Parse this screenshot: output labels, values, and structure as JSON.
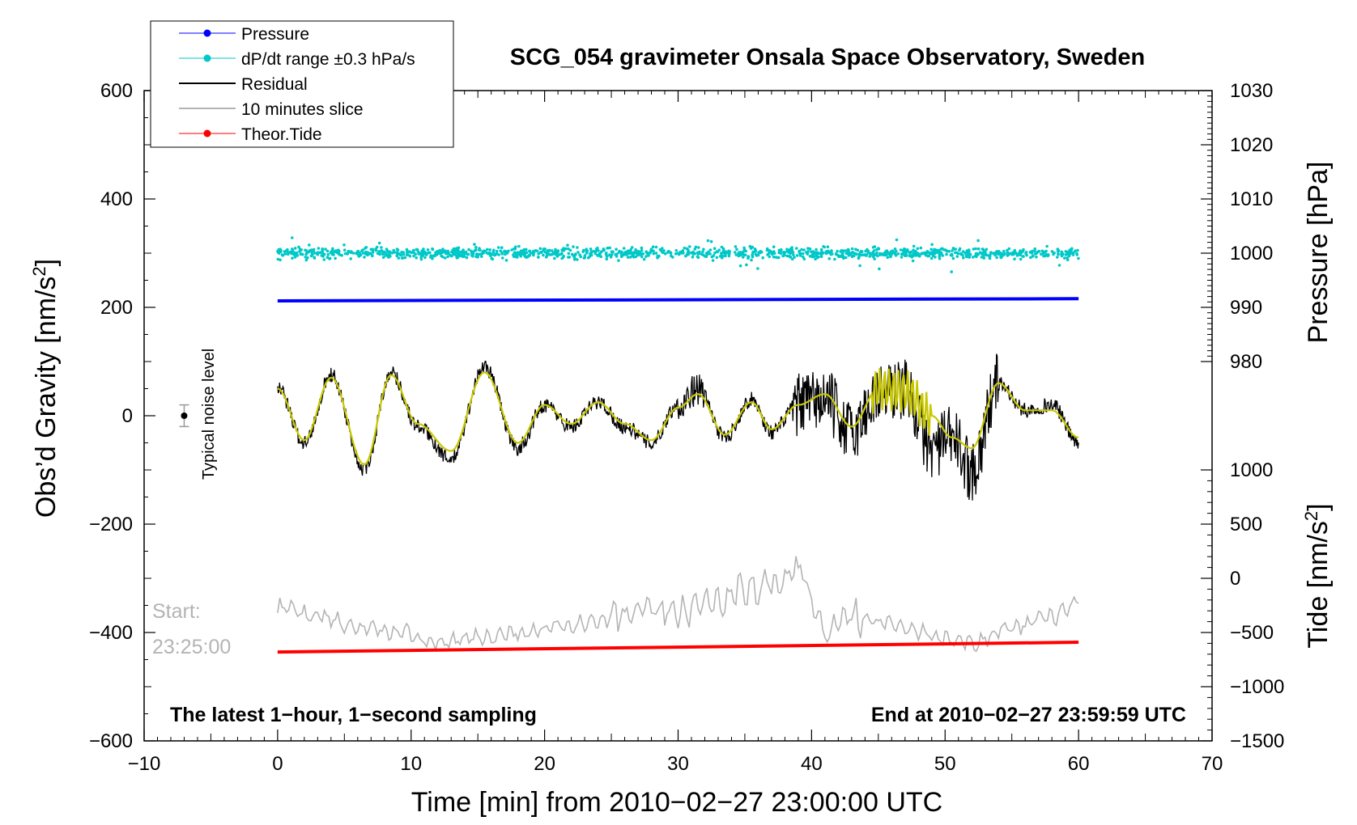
{
  "chart_data": {
    "type": "line",
    "title": "SCG_054 gravimeter Onsala Space Observatory, Sweden",
    "xlabel": "Time [min] from 2010−02−27 23:00:00 UTC",
    "ylabel_left": "Obs’d Gravity [nm/s",
    "ylabel_left_sup": "2",
    "ylabel_left_end": "]",
    "ylabel_right_pressure": "Pressure [hPa]",
    "ylabel_right_tide": "Tide [nm/s",
    "ylabel_right_tide_sup": "2",
    "ylabel_right_tide_end": "]",
    "xlim": [
      -10,
      70
    ],
    "ylim": [
      -600,
      600
    ],
    "pressure_axis": [
      980,
      1030
    ],
    "tide_axis": [
      -1500,
      1000
    ],
    "x_ticks": [
      "−10",
      "0",
      "10",
      "20",
      "30",
      "40",
      "50",
      "60",
      "70"
    ],
    "y_ticks_left": [
      "600",
      "400",
      "200",
      "0",
      "−200",
      "−400",
      "−600"
    ],
    "y_ticks_pressure": [
      "1030",
      "1020",
      "1010",
      "1000",
      "990",
      "980"
    ],
    "y_ticks_tide": [
      "1000",
      "500",
      "0",
      "−500",
      "−1000",
      "−1500"
    ],
    "note_left": "The latest 1−hour, 1−second sampling",
    "note_right": "End at 2010−02−27 23:59:59 UTC",
    "start_label": "Start:",
    "start_time": "23:25:00",
    "noise_label": "Typical noise level",
    "noise_level": {
      "x": -7,
      "y": 0,
      "err": 20
    },
    "legend": [
      {
        "label": "Pressure",
        "color": "#0000ff",
        "marker": "dot"
      },
      {
        "label": "dP/dt range ±0.3 hPa/s",
        "color": "#00c8c8",
        "marker": "dot"
      },
      {
        "label": "Residual",
        "color": "#000000",
        "marker": "line"
      },
      {
        "label": "10 minutes slice",
        "color": "#b4b4b4",
        "marker": "line"
      },
      {
        "label": "Theor.Tide",
        "color": "#ff0000",
        "marker": "dot"
      }
    ],
    "series": [
      {
        "name": "Pressure",
        "color": "#0000ff",
        "axis": "pressure",
        "x": [
          0,
          60
        ],
        "values": [
          991.2,
          991.6
        ]
      },
      {
        "name": "dP/dt",
        "color": "#00c8c8",
        "axis": "left",
        "x_range": [
          0,
          60
        ],
        "center": 300,
        "spread": 10
      },
      {
        "name": "Residual",
        "color": "#000000",
        "axis": "left",
        "x": [
          0,
          2,
          4,
          6.5,
          8.5,
          10.5,
          13,
          15.5,
          18,
          20,
          22,
          24,
          26,
          28,
          30,
          31.5,
          33.5,
          35.5,
          37,
          39,
          41,
          43,
          45,
          47,
          49,
          50.5,
          52,
          54,
          56,
          58,
          60
        ],
        "values": [
          50,
          -50,
          75,
          -100,
          80,
          -20,
          -80,
          90,
          -60,
          20,
          -20,
          25,
          -20,
          -50,
          20,
          50,
          -40,
          30,
          -30,
          20,
          30,
          -30,
          40,
          50,
          -60,
          -40,
          -100,
          60,
          10,
          20,
          -50
        ]
      },
      {
        "name": "10 minutes slice",
        "color": "#b4b4b4",
        "axis": "left",
        "x": [
          0,
          3,
          6,
          9,
          12,
          15,
          18,
          21,
          24,
          26,
          28,
          30,
          33,
          35,
          37,
          39,
          41,
          43,
          45,
          47,
          50,
          52,
          55,
          58,
          60
        ],
        "values": [
          -355,
          -370,
          -390,
          -400,
          -420,
          -410,
          -400,
          -390,
          -380,
          -370,
          -360,
          -360,
          -340,
          -320,
          -310,
          -290,
          -400,
          -370,
          -380,
          -390,
          -410,
          -420,
          -390,
          -370,
          -340
        ]
      },
      {
        "name": "Theor.Tide",
        "color": "#ff0000",
        "axis": "tide",
        "x": [
          0,
          60
        ],
        "values": [
          -680,
          -590
        ]
      },
      {
        "name": "Residual smoothed",
        "color": "#c8c800",
        "axis": "left",
        "x": [
          0,
          2,
          4,
          6.5,
          8.5,
          10.5,
          13,
          15.5,
          18,
          20,
          22,
          24,
          26,
          28,
          30,
          31.5,
          33.5,
          35.5,
          37,
          39,
          41,
          43,
          45,
          47,
          49,
          50.5,
          52,
          54,
          56,
          58,
          60
        ],
        "values": [
          50,
          -45,
          70,
          -90,
          75,
          -15,
          -65,
          80,
          -50,
          20,
          -15,
          25,
          -15,
          -45,
          15,
          40,
          -35,
          25,
          -25,
          20,
          40,
          -20,
          50,
          45,
          0,
          -40,
          -60,
          60,
          10,
          10,
          -40
        ]
      }
    ]
  }
}
